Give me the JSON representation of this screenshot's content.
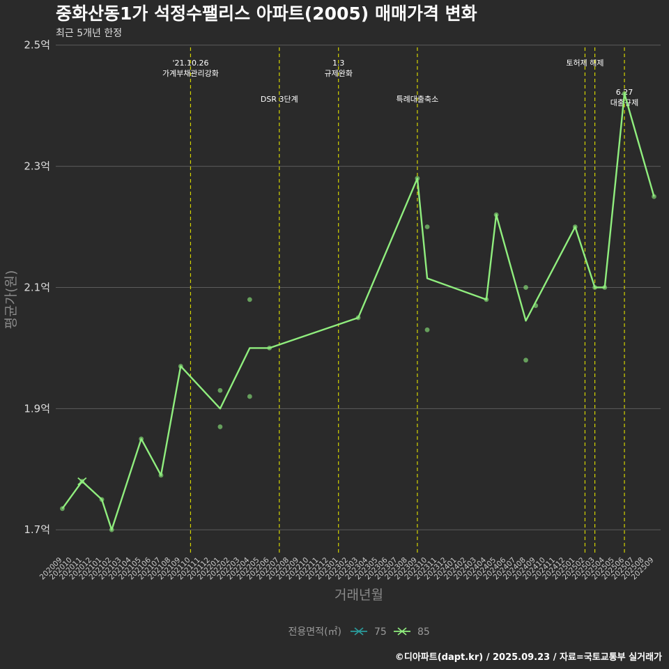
{
  "chart_data": {
    "type": "line",
    "title": "중화산동1가 석정수팰리스 아파트(2005) 매매가격 변화",
    "subtitle": "최근 5개년 한정",
    "xlabel": "거래년월",
    "ylabel": "평균가(원)",
    "caption": "©디아파트(dapt.kr) / 2025.09.23 / 자료=국토교통부 실거래가",
    "ylim": [
      1.66,
      2.51
    ],
    "yticks": [
      {
        "value": 1.7,
        "label": "1.7억"
      },
      {
        "value": 1.9,
        "label": "1.9억"
      },
      {
        "value": 2.1,
        "label": "2.1억"
      },
      {
        "value": 2.3,
        "label": "2.3억"
      },
      {
        "value": 2.5,
        "label": "2.5억"
      }
    ],
    "categories": [
      "202009",
      "202010",
      "202011",
      "202012",
      "202101",
      "202102",
      "202103",
      "202104",
      "202105",
      "202106",
      "202107",
      "202108",
      "202109",
      "202110",
      "202111",
      "202112",
      "202201",
      "202202",
      "202203",
      "202204",
      "202205",
      "202206",
      "202207",
      "202208",
      "202209",
      "202210",
      "202211",
      "202212",
      "202301",
      "202302",
      "202303",
      "202304",
      "202305",
      "202306",
      "202307",
      "202308",
      "202309",
      "202310",
      "202311",
      "202312",
      "202401",
      "202402",
      "202403",
      "202404",
      "202405",
      "202406",
      "202407",
      "202408",
      "202409",
      "202410",
      "202411",
      "202412",
      "202501",
      "202502",
      "202503",
      "202504",
      "202505",
      "202506",
      "202507",
      "202508",
      "202509"
    ],
    "series": [
      {
        "name": "75",
        "color": "#2a9d9d",
        "line": [
          {
            "x": "202011",
            "y": 1.78
          }
        ],
        "points": []
      },
      {
        "name": "85",
        "color": "#90ee7e",
        "line": [
          {
            "x": "202009",
            "y": 1.735
          },
          {
            "x": "202011",
            "y": 1.78
          },
          {
            "x": "202101",
            "y": 1.75
          },
          {
            "x": "202102",
            "y": 1.7
          },
          {
            "x": "202105",
            "y": 1.85
          },
          {
            "x": "202107",
            "y": 1.79
          },
          {
            "x": "202109",
            "y": 1.97
          },
          {
            "x": "202201",
            "y": 1.9
          },
          {
            "x": "202204",
            "y": 2.0
          },
          {
            "x": "202206",
            "y": 2.0
          },
          {
            "x": "202303",
            "y": 2.05
          },
          {
            "x": "202309",
            "y": 2.28
          },
          {
            "x": "202310",
            "y": 2.115
          },
          {
            "x": "202404",
            "y": 2.08
          },
          {
            "x": "202405",
            "y": 2.22
          },
          {
            "x": "202408",
            "y": 2.045
          },
          {
            "x": "202501",
            "y": 2.2
          },
          {
            "x": "202503",
            "y": 2.1
          },
          {
            "x": "202504",
            "y": 2.1
          },
          {
            "x": "202506",
            "y": 2.42
          },
          {
            "x": "202509",
            "y": 2.25
          }
        ],
        "points": [
          {
            "x": "202009",
            "y": 1.735
          },
          {
            "x": "202011",
            "y": 1.78
          },
          {
            "x": "202101",
            "y": 1.75
          },
          {
            "x": "202102",
            "y": 1.7
          },
          {
            "x": "202105",
            "y": 1.85
          },
          {
            "x": "202107",
            "y": 1.79
          },
          {
            "x": "202109",
            "y": 1.97
          },
          {
            "x": "202201",
            "y": 1.93
          },
          {
            "x": "202201",
            "y": 1.87
          },
          {
            "x": "202204",
            "y": 2.08
          },
          {
            "x": "202204",
            "y": 1.92
          },
          {
            "x": "202206",
            "y": 2.0
          },
          {
            "x": "202303",
            "y": 2.05
          },
          {
            "x": "202309",
            "y": 2.28
          },
          {
            "x": "202310",
            "y": 2.2
          },
          {
            "x": "202310",
            "y": 2.03
          },
          {
            "x": "202404",
            "y": 2.08
          },
          {
            "x": "202405",
            "y": 2.22
          },
          {
            "x": "202408",
            "y": 2.1
          },
          {
            "x": "202408",
            "y": 1.98
          },
          {
            "x": "202409",
            "y": 2.07
          },
          {
            "x": "202501",
            "y": 2.2
          },
          {
            "x": "202503",
            "y": 2.1
          },
          {
            "x": "202504",
            "y": 2.1
          },
          {
            "x": "202506",
            "y": 2.42
          },
          {
            "x": "202509",
            "y": 2.25
          }
        ]
      }
    ],
    "events": [
      {
        "x": "202110",
        "lines": [
          "'21.10.26",
          "가계부채관리강화"
        ],
        "level": 1
      },
      {
        "x": "202207",
        "lines": [
          "DSR 3단계"
        ],
        "level": 2
      },
      {
        "x": "202301",
        "lines": [
          "1.3",
          "규제완화"
        ],
        "level": 1
      },
      {
        "x": "202309",
        "lines": [
          "특례대출축소"
        ],
        "level": 2
      },
      {
        "x": "202502",
        "lines": [
          "토허제 해제"
        ],
        "level": 1
      },
      {
        "x": "202503",
        "lines": [],
        "level": 1
      },
      {
        "x": "202506",
        "lines": [
          "6.27",
          "대출규제"
        ],
        "level": 3
      }
    ],
    "legend": {
      "title": "전용면적(㎡)",
      "items": [
        "75",
        "85"
      ],
      "position": "bottom"
    },
    "event_line_color": "#d4d400",
    "grid": true
  }
}
